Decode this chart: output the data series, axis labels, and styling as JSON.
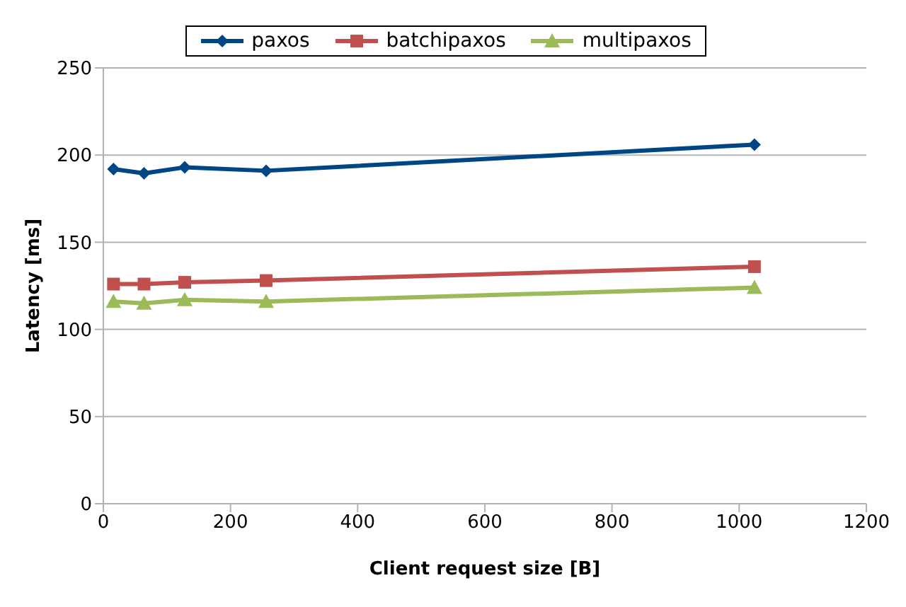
{
  "chart_data": {
    "type": "line",
    "xlabel": "Client request size [B]",
    "ylabel": "Latency [ms]",
    "x": [
      16,
      64,
      128,
      256,
      1024
    ],
    "series": [
      {
        "name": "paxos",
        "color": "#004586",
        "marker": "diamond",
        "values": [
          192,
          189.5,
          193,
          191,
          206
        ]
      },
      {
        "name": "batchipaxos",
        "color": "#c0504d",
        "marker": "square",
        "values": [
          126,
          126,
          127,
          128,
          136
        ]
      },
      {
        "name": "multipaxos",
        "color": "#9bbb59",
        "marker": "triangle",
        "values": [
          116,
          115,
          117,
          116,
          124
        ]
      }
    ],
    "xlim": [
      0,
      1200
    ],
    "xticks": [
      0,
      200,
      400,
      600,
      800,
      1000,
      1200
    ],
    "ylim": [
      0,
      250
    ],
    "yticks": [
      0,
      50,
      100,
      150,
      200,
      250
    ],
    "grid": "y",
    "legend": "top"
  }
}
